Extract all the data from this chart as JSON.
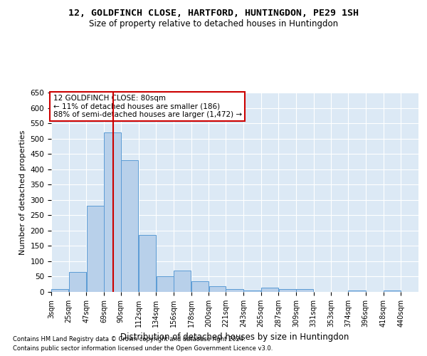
{
  "title": "12, GOLDFINCH CLOSE, HARTFORD, HUNTINGDON, PE29 1SH",
  "subtitle": "Size of property relative to detached houses in Huntingdon",
  "xlabel": "Distribution of detached houses by size in Huntingdon",
  "ylabel": "Number of detached properties",
  "footnote1": "Contains HM Land Registry data © Crown copyright and database right 2024.",
  "footnote2": "Contains public sector information licensed under the Open Government Licence v3.0.",
  "annotation_line1": "12 GOLDFINCH CLOSE: 80sqm",
  "annotation_line2": "← 11% of detached houses are smaller (186)",
  "annotation_line3": "88% of semi-detached houses are larger (1,472) →",
  "property_size": 80,
  "bar_left_edges": [
    3,
    25,
    47,
    69,
    90,
    112,
    134,
    156,
    178,
    200,
    221,
    243,
    265,
    287,
    309,
    331,
    353,
    374,
    396,
    418
  ],
  "bar_widths": [
    22,
    22,
    22,
    21,
    22,
    22,
    22,
    22,
    22,
    21,
    22,
    22,
    22,
    22,
    22,
    22,
    21,
    22,
    22,
    22
  ],
  "bar_heights": [
    10,
    65,
    280,
    520,
    430,
    185,
    50,
    70,
    35,
    18,
    10,
    5,
    15,
    10,
    10,
    0,
    0,
    5,
    0,
    5
  ],
  "bar_color": "#b8d0ea",
  "bar_edge_color": "#5b9bd5",
  "vline_color": "#cc0000",
  "vline_x": 80,
  "annotation_box_color": "#cc0000",
  "bg_color": "#dce9f5",
  "ylim": [
    0,
    650
  ],
  "yticks": [
    0,
    50,
    100,
    150,
    200,
    250,
    300,
    350,
    400,
    450,
    500,
    550,
    600,
    650
  ],
  "xtick_labels": [
    "3sqm",
    "25sqm",
    "47sqm",
    "69sqm",
    "90sqm",
    "112sqm",
    "134sqm",
    "156sqm",
    "178sqm",
    "200sqm",
    "221sqm",
    "243sqm",
    "265sqm",
    "287sqm",
    "309sqm",
    "331sqm",
    "353sqm",
    "374sqm",
    "396sqm",
    "418sqm",
    "440sqm"
  ],
  "xtick_positions": [
    3,
    25,
    47,
    69,
    90,
    112,
    134,
    156,
    178,
    200,
    221,
    243,
    265,
    287,
    309,
    331,
    353,
    374,
    396,
    418,
    440
  ]
}
